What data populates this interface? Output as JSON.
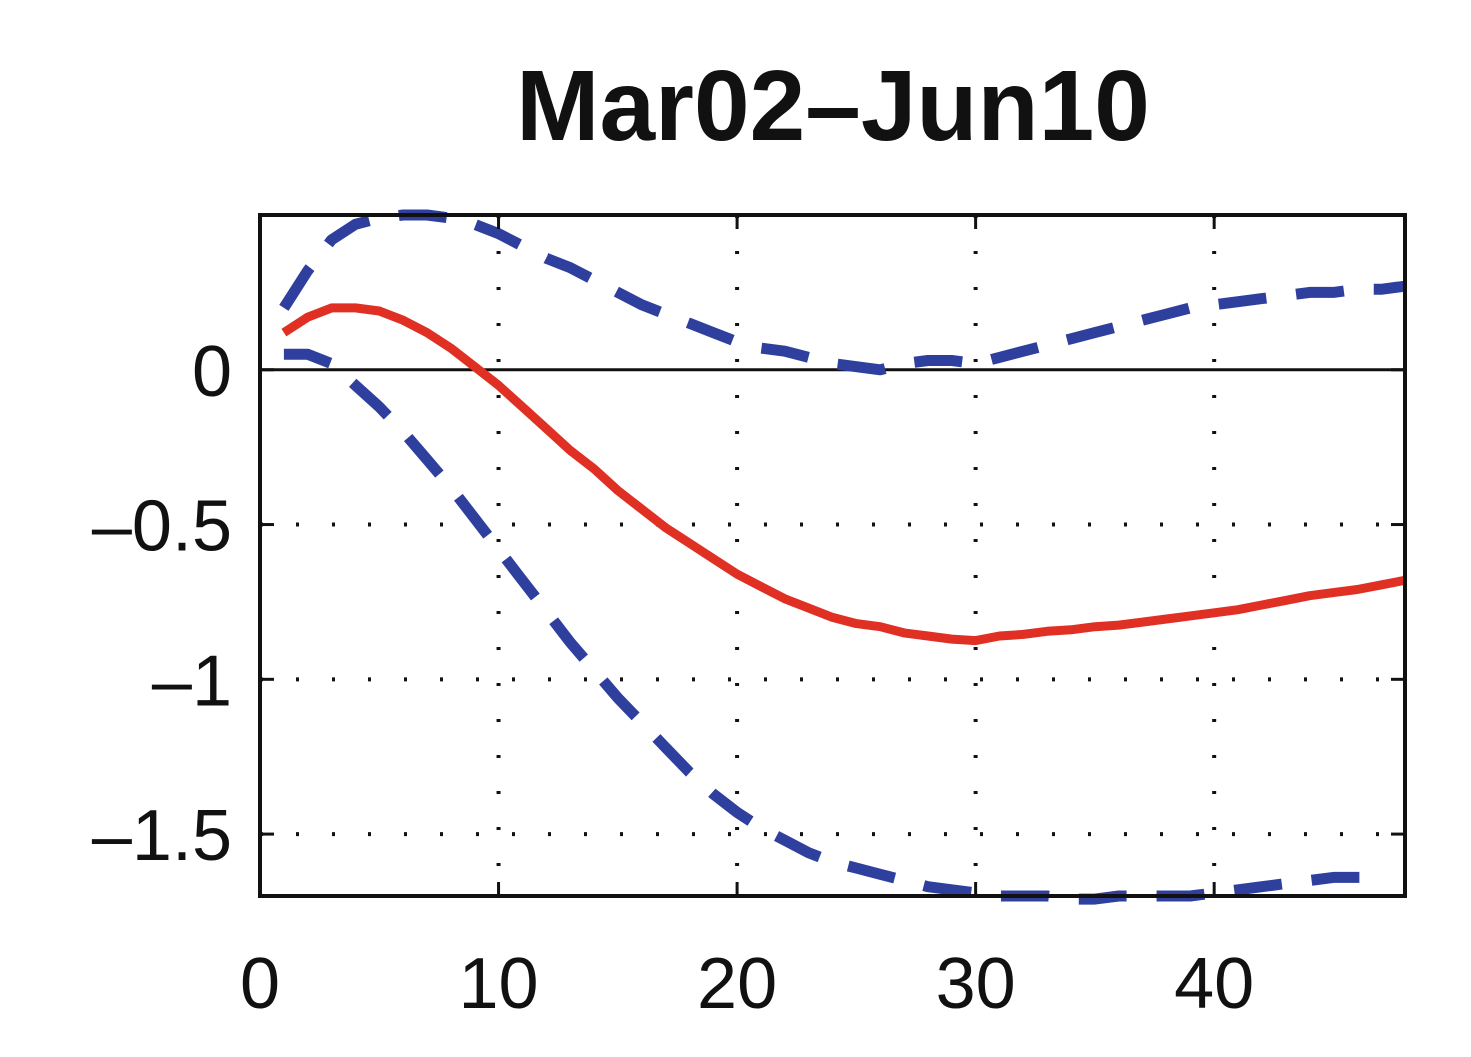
{
  "chart_data": {
    "type": "line",
    "title": "Mar02–Jun10",
    "xlabel": "",
    "ylabel": "",
    "xlim": [
      0,
      48
    ],
    "ylim": [
      -1.7,
      0.5
    ],
    "xticks": [
      0,
      10,
      20,
      30,
      40
    ],
    "xtick_labels": [
      "0",
      "10",
      "20",
      "30",
      "40"
    ],
    "yticks": [
      0,
      -0.5,
      -1,
      -1.5
    ],
    "ytick_labels": [
      "0",
      "–0.5",
      "–1",
      "–1.5"
    ],
    "grid": "dotted",
    "zero_line": true,
    "legend": "none",
    "series": [
      {
        "style": "solid",
        "color": "#e03024",
        "x": [
          1,
          2,
          3,
          4,
          5,
          6,
          7,
          8,
          9,
          10,
          11,
          12,
          13,
          14,
          15,
          16,
          17,
          18,
          19,
          20,
          21,
          22,
          23,
          24,
          25,
          26,
          27,
          28,
          29,
          30,
          31,
          32,
          33,
          34,
          35,
          36,
          37,
          38,
          39,
          40,
          41,
          42,
          43,
          44,
          45,
          46,
          47,
          48
        ],
        "y": [
          0.12,
          0.17,
          0.2,
          0.2,
          0.19,
          0.16,
          0.12,
          0.07,
          0.01,
          -0.05,
          -0.12,
          -0.19,
          -0.26,
          -0.32,
          -0.39,
          -0.45,
          -0.51,
          -0.56,
          -0.61,
          -0.66,
          -0.7,
          -0.74,
          -0.77,
          -0.8,
          -0.82,
          -0.83,
          -0.85,
          -0.86,
          -0.87,
          -0.875,
          -0.86,
          -0.855,
          -0.845,
          -0.84,
          -0.83,
          -0.825,
          -0.815,
          -0.805,
          -0.795,
          -0.785,
          -0.775,
          -0.76,
          -0.745,
          -0.73,
          -0.72,
          -0.71,
          -0.695,
          -0.68
        ]
      },
      {
        "style": "dashed",
        "color": "#2e3f9e",
        "x": [
          1,
          2,
          3,
          4,
          5,
          6,
          7,
          8,
          9,
          10,
          11,
          12,
          13,
          14,
          15,
          16,
          17,
          18,
          19,
          20,
          21,
          22,
          23,
          24,
          25,
          26,
          27,
          28,
          29,
          30,
          31,
          32,
          33,
          34,
          35,
          36,
          37,
          38,
          39,
          40,
          41,
          42,
          43,
          44,
          45,
          46,
          47,
          48
        ],
        "y": [
          0.2,
          0.32,
          0.42,
          0.47,
          0.49,
          0.5,
          0.5,
          0.49,
          0.47,
          0.44,
          0.4,
          0.36,
          0.33,
          0.29,
          0.25,
          0.21,
          0.18,
          0.15,
          0.12,
          0.09,
          0.07,
          0.06,
          0.04,
          0.02,
          0.01,
          0.0,
          0.02,
          0.03,
          0.03,
          0.02,
          0.04,
          0.06,
          0.08,
          0.1,
          0.12,
          0.14,
          0.16,
          0.18,
          0.2,
          0.21,
          0.22,
          0.23,
          0.24,
          0.25,
          0.25,
          0.26,
          0.26,
          0.27
        ]
      },
      {
        "style": "dashed",
        "color": "#2e3f9e",
        "x": [
          1,
          2,
          3,
          4,
          5,
          6,
          7,
          8,
          9,
          10,
          11,
          12,
          13,
          14,
          15,
          16,
          17,
          18,
          19,
          20,
          21,
          22,
          23,
          24,
          25,
          26,
          27,
          28,
          29,
          30,
          31,
          32,
          33,
          34,
          35,
          36,
          37,
          38,
          39,
          40,
          41,
          42,
          43,
          44,
          45,
          46,
          47
        ],
        "y": [
          0.05,
          0.05,
          0.02,
          -0.05,
          -0.12,
          -0.2,
          -0.29,
          -0.38,
          -0.48,
          -0.58,
          -0.68,
          -0.78,
          -0.88,
          -0.97,
          -1.06,
          -1.14,
          -1.22,
          -1.3,
          -1.37,
          -1.43,
          -1.48,
          -1.52,
          -1.56,
          -1.59,
          -1.61,
          -1.63,
          -1.65,
          -1.67,
          -1.68,
          -1.69,
          -1.7,
          -1.7,
          -1.7,
          -1.71,
          -1.71,
          -1.7,
          -1.7,
          -1.7,
          -1.7,
          -1.69,
          -1.68,
          -1.67,
          -1.66,
          -1.65,
          -1.64,
          -1.64,
          -1.64
        ]
      }
    ]
  }
}
